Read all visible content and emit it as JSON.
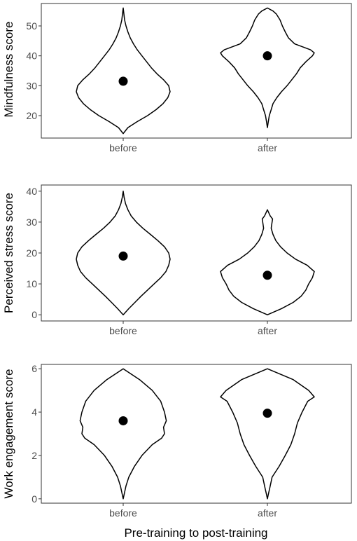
{
  "figure": {
    "xlabel": "Pre-training to post-training"
  },
  "chart_data": [
    {
      "type": "violin",
      "ylabel": "Mindfulness score",
      "categories": [
        "before",
        "after"
      ],
      "yticks": [
        20,
        30,
        40,
        50
      ],
      "ylim": [
        12.5,
        57.5
      ],
      "series": [
        {
          "name": "before",
          "mean": 31.5,
          "profile": [
            [
              14,
              0
            ],
            [
              16,
              0.1
            ],
            [
              18,
              0.3
            ],
            [
              20,
              0.52
            ],
            [
              22,
              0.7
            ],
            [
              24,
              0.85
            ],
            [
              26,
              0.95
            ],
            [
              28,
              1.0
            ],
            [
              30,
              0.97
            ],
            [
              32,
              0.86
            ],
            [
              34,
              0.72
            ],
            [
              36,
              0.6
            ],
            [
              38,
              0.5
            ],
            [
              40,
              0.4
            ],
            [
              42,
              0.3
            ],
            [
              44,
              0.22
            ],
            [
              46,
              0.15
            ],
            [
              48,
              0.1
            ],
            [
              50,
              0.06
            ],
            [
              52,
              0.03
            ],
            [
              54,
              0.015
            ],
            [
              56,
              0
            ]
          ]
        },
        {
          "name": "after",
          "mean": 40,
          "profile": [
            [
              16,
              0
            ],
            [
              18,
              0.02
            ],
            [
              20,
              0.04
            ],
            [
              22,
              0.08
            ],
            [
              24,
              0.12
            ],
            [
              26,
              0.2
            ],
            [
              28,
              0.3
            ],
            [
              30,
              0.42
            ],
            [
              32,
              0.52
            ],
            [
              34,
              0.62
            ],
            [
              36,
              0.7
            ],
            [
              38,
              0.82
            ],
            [
              40,
              0.96
            ],
            [
              41,
              1.0
            ],
            [
              42,
              0.92
            ],
            [
              44,
              0.58
            ],
            [
              46,
              0.45
            ],
            [
              48,
              0.38
            ],
            [
              50,
              0.32
            ],
            [
              52,
              0.27
            ],
            [
              54,
              0.19
            ],
            [
              55,
              0.12
            ],
            [
              56,
              0
            ]
          ]
        }
      ]
    },
    {
      "type": "violin",
      "ylabel": "Perceived stress score",
      "categories": [
        "before",
        "after"
      ],
      "yticks": [
        0,
        10,
        20,
        30,
        40
      ],
      "ylim": [
        -2,
        42
      ],
      "series": [
        {
          "name": "before",
          "mean": 19,
          "profile": [
            [
              0,
              0
            ],
            [
              2,
              0.12
            ],
            [
              4,
              0.25
            ],
            [
              6,
              0.38
            ],
            [
              8,
              0.52
            ],
            [
              10,
              0.66
            ],
            [
              12,
              0.8
            ],
            [
              14,
              0.91
            ],
            [
              16,
              0.97
            ],
            [
              18,
              1.0
            ],
            [
              20,
              0.97
            ],
            [
              22,
              0.88
            ],
            [
              24,
              0.74
            ],
            [
              26,
              0.58
            ],
            [
              28,
              0.42
            ],
            [
              30,
              0.28
            ],
            [
              32,
              0.17
            ],
            [
              34,
              0.1
            ],
            [
              36,
              0.05
            ],
            [
              38,
              0.02
            ],
            [
              40,
              0
            ]
          ]
        },
        {
          "name": "after",
          "mean": 12.8,
          "profile": [
            [
              0,
              0
            ],
            [
              2,
              0.3
            ],
            [
              4,
              0.55
            ],
            [
              6,
              0.72
            ],
            [
              8,
              0.82
            ],
            [
              10,
              0.88
            ],
            [
              12,
              0.96
            ],
            [
              14,
              1.0
            ],
            [
              16,
              0.85
            ],
            [
              18,
              0.6
            ],
            [
              20,
              0.42
            ],
            [
              22,
              0.28
            ],
            [
              24,
              0.18
            ],
            [
              26,
              0.12
            ],
            [
              28,
              0.08
            ],
            [
              30,
              0.1
            ],
            [
              31,
              0.11
            ],
            [
              32,
              0.06
            ],
            [
              33,
              0.03
            ],
            [
              34,
              0
            ]
          ]
        }
      ]
    },
    {
      "type": "violin",
      "ylabel": "Work engagement score",
      "categories": [
        "before",
        "after"
      ],
      "yticks": [
        0,
        2,
        4,
        6
      ],
      "ylim": [
        -0.2,
        6.2
      ],
      "series": [
        {
          "name": "before",
          "mean": 3.6,
          "profile": [
            [
              0,
              0
            ],
            [
              0.3,
              0.03
            ],
            [
              0.6,
              0.06
            ],
            [
              1.0,
              0.12
            ],
            [
              1.5,
              0.24
            ],
            [
              2.0,
              0.4
            ],
            [
              2.5,
              0.62
            ],
            [
              2.8,
              0.82
            ],
            [
              3.0,
              0.88
            ],
            [
              3.3,
              0.86
            ],
            [
              3.6,
              0.92
            ],
            [
              4.0,
              0.88
            ],
            [
              4.5,
              0.8
            ],
            [
              5.0,
              0.62
            ],
            [
              5.5,
              0.35
            ],
            [
              6.0,
              0
            ]
          ]
        },
        {
          "name": "after",
          "mean": 3.95,
          "profile": [
            [
              0,
              0
            ],
            [
              0.2,
              0.02
            ],
            [
              0.5,
              0.05
            ],
            [
              1.0,
              0.1
            ],
            [
              1.5,
              0.25
            ],
            [
              2.0,
              0.38
            ],
            [
              2.5,
              0.5
            ],
            [
              3.0,
              0.58
            ],
            [
              3.5,
              0.64
            ],
            [
              4.0,
              0.74
            ],
            [
              4.5,
              0.86
            ],
            [
              4.7,
              1.0
            ],
            [
              5.0,
              0.88
            ],
            [
              5.5,
              0.55
            ],
            [
              6.0,
              0
            ]
          ]
        }
      ]
    }
  ]
}
